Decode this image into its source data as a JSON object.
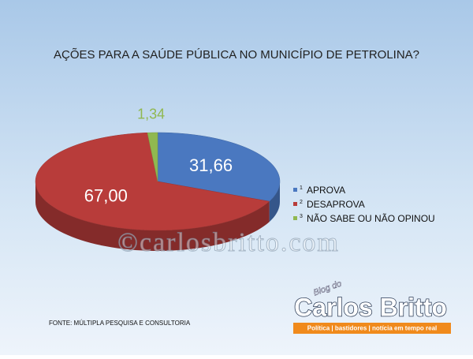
{
  "chart_data": {
    "type": "pie",
    "title": "AÇÕES PARA A SAÚDE PÚBLICA NO MUNICÍPIO DE PETROLINA?",
    "categories": [
      "APROVA",
      "DESAPROVA",
      "NÃO SABE OU NÃO OPINOU"
    ],
    "legend_numbers": [
      "1",
      "2",
      "3"
    ],
    "values": [
      31.66,
      67.0,
      1.34
    ],
    "value_labels": [
      "31,66",
      "67,00",
      "1,34"
    ],
    "colors": [
      "#4a78c0",
      "#b83c3a",
      "#90b850"
    ],
    "legend": "right",
    "source": "FONTE: MÚLTIPLA PESQUISA E CONSULTORIA",
    "watermark": "©carlosbritto.com",
    "logo_top": "Blog do",
    "logo_name": "Carlos Britto",
    "logo_tagline": "Política | bastidores | notícia em tempo real"
  }
}
